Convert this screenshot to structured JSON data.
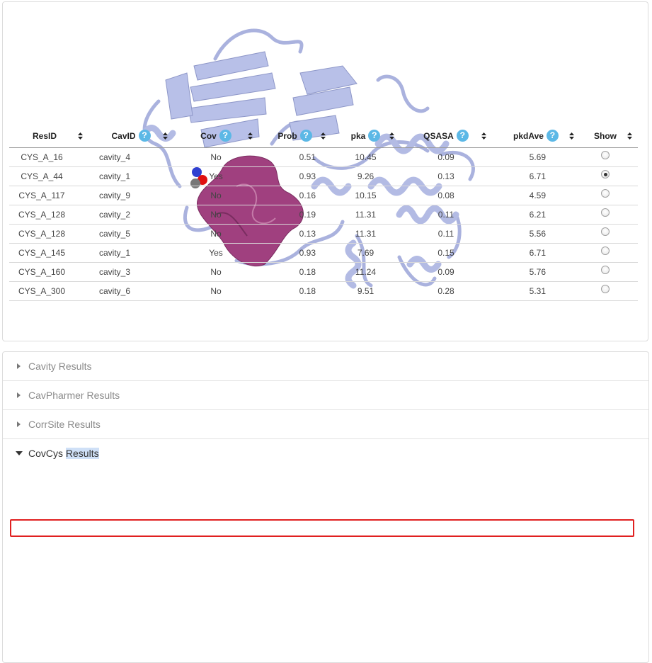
{
  "accordion": [
    {
      "label": "Cavity Results",
      "open": false
    },
    {
      "label": "CavPharmer Results",
      "open": false
    },
    {
      "label": "CorrSite Results",
      "open": false
    },
    {
      "label_part1": "CovCys",
      "label_part2": "Results",
      "open": true
    }
  ],
  "table": {
    "columns": [
      {
        "label": "ResID",
        "help": false
      },
      {
        "label": "CavID",
        "help": true
      },
      {
        "label": "Cov",
        "help": true
      },
      {
        "label": "Prob",
        "help": true
      },
      {
        "label": "pka",
        "help": true
      },
      {
        "label": "QSASA",
        "help": true
      },
      {
        "label": "pkdAve",
        "help": true
      },
      {
        "label": "Show",
        "help": false
      }
    ],
    "help_symbol": "?",
    "rows": [
      {
        "resid": "CYS_A_16",
        "cavid": "cavity_4",
        "cov": "No",
        "prob": "0.51",
        "pka": "10.45",
        "qsasa": "0.09",
        "pkdave": "5.69",
        "show": false
      },
      {
        "resid": "CYS_A_44",
        "cavid": "cavity_1",
        "cov": "Yes",
        "prob": "0.93",
        "pka": "9.26",
        "qsasa": "0.13",
        "pkdave": "6.71",
        "show": true
      },
      {
        "resid": "CYS_A_117",
        "cavid": "cavity_9",
        "cov": "No",
        "prob": "0.16",
        "pka": "10.15",
        "qsasa": "0.08",
        "pkdave": "4.59",
        "show": false
      },
      {
        "resid": "CYS_A_128",
        "cavid": "cavity_2",
        "cov": "No",
        "prob": "0.19",
        "pka": "11.31",
        "qsasa": "0.11",
        "pkdave": "6.21",
        "show": false
      },
      {
        "resid": "CYS_A_128",
        "cavid": "cavity_5",
        "cov": "No",
        "prob": "0.13",
        "pka": "11.31",
        "qsasa": "0.11",
        "pkdave": "5.56",
        "show": false
      },
      {
        "resid": "CYS_A_145",
        "cavid": "cavity_1",
        "cov": "Yes",
        "prob": "0.93",
        "pka": "7.69",
        "qsasa": "0.15",
        "pkdave": "6.71",
        "show": false
      },
      {
        "resid": "CYS_A_160",
        "cavid": "cavity_3",
        "cov": "No",
        "prob": "0.18",
        "pka": "11.24",
        "qsasa": "0.09",
        "pkdave": "5.76",
        "show": false
      },
      {
        "resid": "CYS_A_300",
        "cavid": "cavity_6",
        "cov": "No",
        "prob": "0.18",
        "pka": "9.51",
        "qsasa": "0.28",
        "pkdave": "5.31",
        "show": false
      }
    ],
    "highlighted_row": 1
  },
  "colors": {
    "protein_ribbon": "#b8c0e8",
    "protein_ribbon_dark": "#8e97c8",
    "cavity_surface": "#a0407f",
    "highlight_border": "#e02020",
    "help_badge": "#5cb8e6"
  },
  "icons": {
    "collapsed": "caret-right-icon",
    "expanded": "caret-down-icon",
    "sort": "sort-icon",
    "help": "question-mark-icon"
  }
}
